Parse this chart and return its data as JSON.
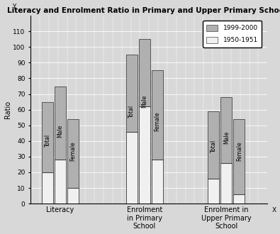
{
  "title": "Literacy and Enrolment Ratio in Primary and Upper Primary Schools",
  "ylabel": "Ratio",
  "ylim": [
    0,
    120
  ],
  "yticks": [
    0,
    10,
    20,
    30,
    40,
    50,
    60,
    70,
    80,
    90,
    100,
    110
  ],
  "groups": [
    "Literacy",
    "Enrolment\nin Primary\nSchool",
    "Enrolment in\nUpper Primary\nSchool"
  ],
  "subgroups": [
    "Total",
    "Male",
    "Female"
  ],
  "values_1999": [
    65,
    75,
    54,
    95,
    105,
    85,
    59,
    68,
    54
  ],
  "values_1950": [
    20,
    28,
    10,
    46,
    62,
    28,
    16,
    26,
    6
  ],
  "color_1999": "#b0b0b0",
  "color_1950": "#f0f0f0",
  "color_edge": "#444444",
  "legend_1999": "1999-2000",
  "legend_1950": "1950-1951",
  "background": "#d8d8d8",
  "grid_color": "#ffffff",
  "title_fontsize": 7.5,
  "label_fontsize": 7.0,
  "tick_fontsize": 6.5,
  "bar_label_fontsize": 5.5,
  "group_centers": [
    1.0,
    2.85,
    4.65
  ],
  "bar_width": 0.25,
  "sub_offsets": [
    -0.28,
    0.0,
    0.28
  ],
  "xlim": [
    0.35,
    5.55
  ]
}
